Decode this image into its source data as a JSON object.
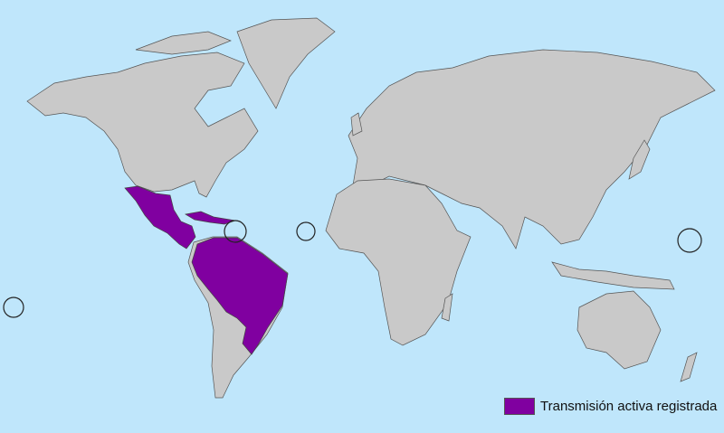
{
  "map": {
    "colors": {
      "ocean": "#bfe6fb",
      "land": "#c9c9c9",
      "active_transmission": "#8000a0"
    },
    "highlighted_regions": [
      "Mexico",
      "Central America",
      "Caribbean",
      "Northern South America",
      "Brazil"
    ],
    "circled_locations": [
      "Lesser Antilles",
      "Cape Verde",
      "Micronesia",
      "Pacific islands"
    ]
  },
  "legend": {
    "items": [
      {
        "label": "Transmisión activa registrada",
        "color": "#8000a0"
      }
    ]
  }
}
